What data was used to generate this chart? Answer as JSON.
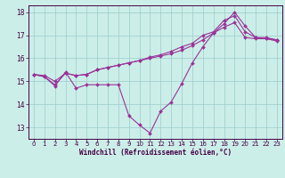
{
  "xlabel": "Windchill (Refroidissement éolien,°C)",
  "background_color": "#cceee8",
  "line_color": "#993399",
  "grid_color": "#99cccc",
  "xlim": [
    -0.5,
    23.5
  ],
  "ylim": [
    12.5,
    18.3
  ],
  "xticks": [
    0,
    1,
    2,
    3,
    4,
    5,
    6,
    7,
    8,
    9,
    10,
    11,
    12,
    13,
    14,
    15,
    16,
    17,
    18,
    19,
    20,
    21,
    22,
    23
  ],
  "yticks": [
    13,
    14,
    15,
    16,
    17,
    18
  ],
  "line1_x": [
    0,
    1,
    2,
    3,
    4,
    5,
    6,
    7,
    8,
    9,
    10,
    11,
    12,
    13,
    14,
    15,
    16,
    17,
    18,
    19,
    20,
    21,
    22,
    23
  ],
  "line1_y": [
    15.3,
    15.2,
    14.8,
    15.4,
    14.7,
    14.85,
    14.85,
    14.85,
    14.85,
    13.5,
    13.1,
    12.75,
    13.7,
    14.1,
    14.9,
    15.8,
    16.5,
    17.1,
    17.5,
    18.0,
    17.4,
    16.9,
    16.9,
    16.8
  ],
  "line2_x": [
    0,
    1,
    2,
    3,
    4,
    5,
    6,
    7,
    8,
    9,
    10,
    11,
    12,
    13,
    14,
    15,
    16,
    17,
    18,
    19,
    20,
    21,
    22,
    23
  ],
  "line2_y": [
    15.3,
    15.25,
    15.0,
    15.35,
    15.25,
    15.3,
    15.5,
    15.6,
    15.7,
    15.8,
    15.9,
    16.0,
    16.1,
    16.2,
    16.35,
    16.55,
    16.8,
    17.1,
    17.35,
    17.55,
    16.9,
    16.85,
    16.85,
    16.8
  ],
  "line3_x": [
    0,
    1,
    2,
    3,
    4,
    5,
    6,
    7,
    8,
    9,
    10,
    11,
    12,
    13,
    14,
    15,
    16,
    17,
    18,
    19,
    20,
    21,
    22,
    23
  ],
  "line3_y": [
    15.3,
    15.2,
    14.85,
    15.35,
    15.25,
    15.3,
    15.5,
    15.6,
    15.7,
    15.8,
    15.9,
    16.05,
    16.15,
    16.3,
    16.5,
    16.65,
    17.0,
    17.15,
    17.65,
    17.85,
    17.15,
    16.9,
    16.85,
    16.75
  ],
  "xlabel_fontsize": 5.5,
  "tick_fontsize": 5.0
}
